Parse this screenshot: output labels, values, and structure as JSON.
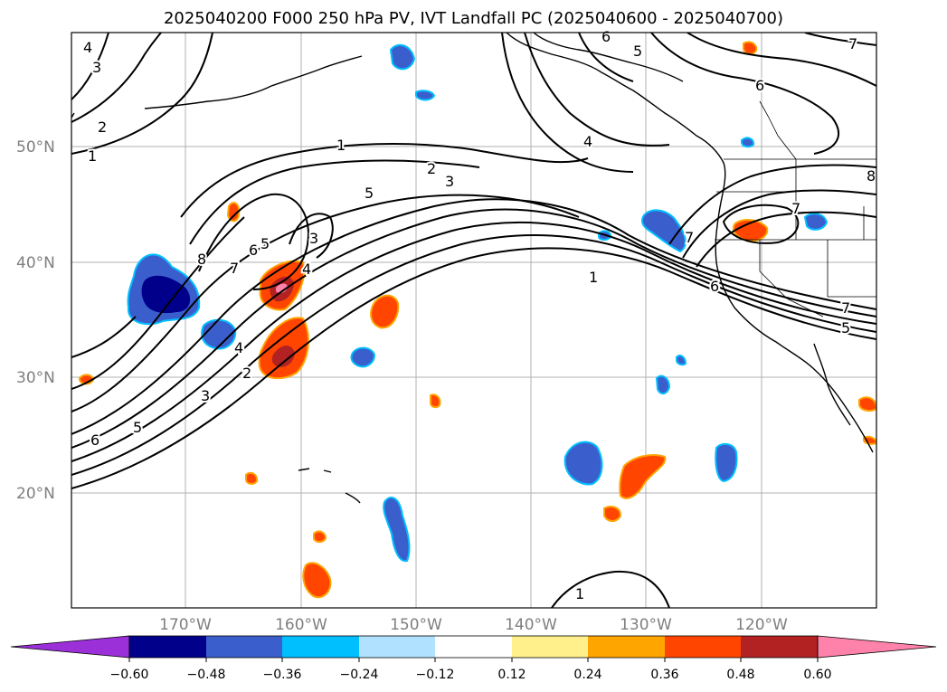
{
  "title": "2025040200 F000 250 hPa PV, IVT Landfall PC (2025040600 - 2025040700)",
  "lat_labels": [
    "50°N",
    "40°N",
    "30°N",
    "20°N"
  ],
  "lon_labels": [
    "170°W",
    "160°W",
    "150°W",
    "140°W",
    "130°W",
    "120°W"
  ],
  "colorbar": {
    "colors": [
      "#9b30d9",
      "#00008b",
      "#3a5fcd",
      "#00bfff",
      "#b0e2ff",
      "#ffffff",
      "#fff08c",
      "#ffa500",
      "#ff4500",
      "#b22222",
      "#ff82ab"
    ],
    "tick_labels": [
      "−0.60",
      "−0.48",
      "−0.36",
      "−0.24",
      "−0.12",
      "0.12",
      "0.24",
      "0.36",
      "0.48",
      "0.60"
    ]
  },
  "contour_labels": [
    "1",
    "2",
    "3",
    "4",
    "5",
    "6",
    "7",
    "8"
  ]
}
